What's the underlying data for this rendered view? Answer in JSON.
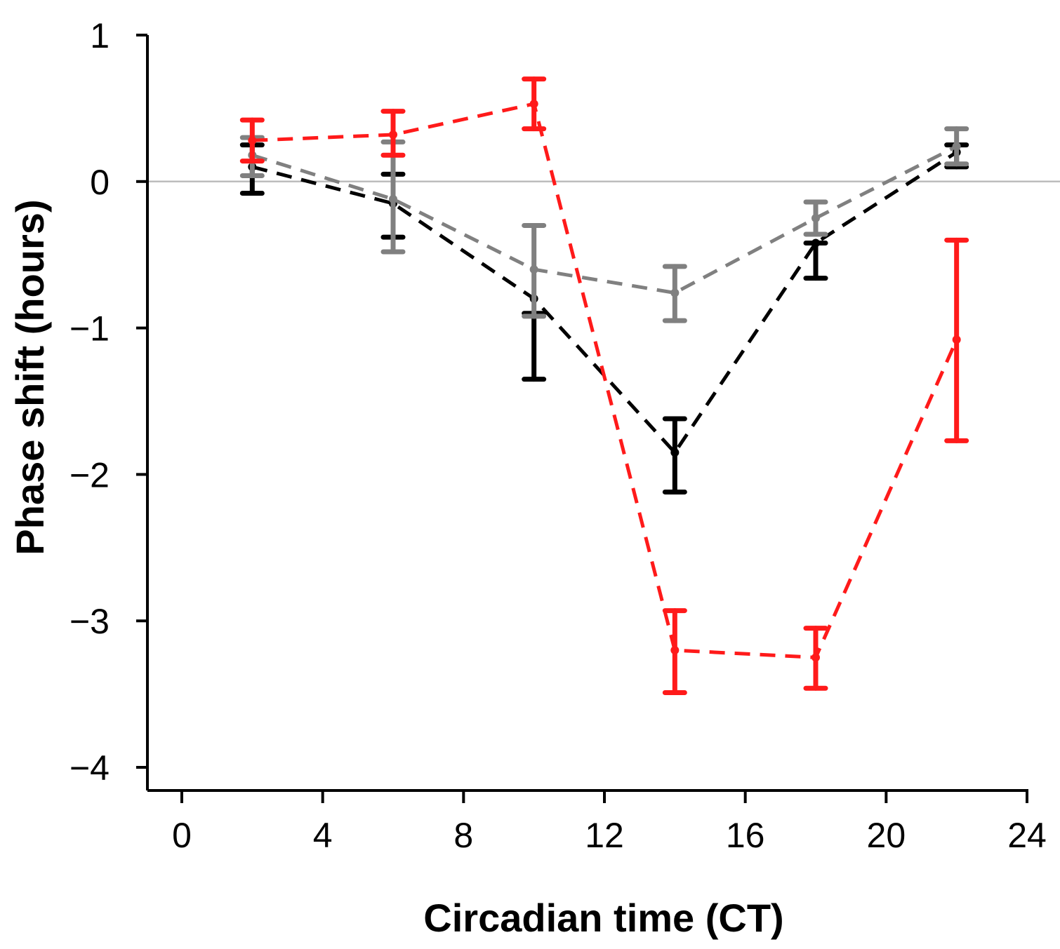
{
  "chart_data": {
    "type": "line",
    "title": "",
    "xlabel": "Circadian time (CT)",
    "ylabel": "Phase shift (hours)",
    "xlim": [
      0,
      24
    ],
    "ylim": [
      -4,
      1
    ],
    "xticks": [
      0,
      4,
      8,
      12,
      16,
      20,
      24
    ],
    "yticks": [
      1,
      0,
      -1,
      -2,
      -3,
      -4
    ],
    "ytick_labels": [
      "1",
      "0",
      "−1",
      "−2",
      "−3",
      "−4"
    ],
    "reference_line": 0,
    "series": [
      {
        "name": "black",
        "color": "#000000",
        "x": [
          2,
          6,
          10,
          14,
          18,
          22
        ],
        "y": [
          0.1,
          -0.15,
          -0.8,
          -1.85,
          -0.42,
          0.2
        ],
        "err_low": [
          -0.08,
          -0.38,
          -1.35,
          -2.12,
          -0.66,
          0.1
        ],
        "err_high": [
          0.25,
          0.05,
          -0.9,
          -1.62,
          -0.42,
          0.25
        ]
      },
      {
        "name": "gray",
        "color": "#808080",
        "x": [
          2,
          6,
          10,
          14,
          18,
          22
        ],
        "y": [
          0.18,
          -0.12,
          -0.6,
          -0.76,
          -0.25,
          0.24
        ],
        "err_low": [
          0.04,
          -0.48,
          -0.92,
          -0.95,
          -0.36,
          0.12
        ],
        "err_high": [
          0.3,
          0.27,
          -0.3,
          -0.58,
          -0.14,
          0.36
        ]
      },
      {
        "name": "red",
        "color": "#ff1a1a",
        "x": [
          2,
          6,
          10,
          14,
          18,
          22
        ],
        "y": [
          0.28,
          0.32,
          0.53,
          -3.2,
          -3.25,
          -1.08
        ],
        "err_low": [
          0.14,
          0.18,
          0.36,
          -3.49,
          -3.46,
          -1.77
        ],
        "err_high": [
          0.42,
          0.48,
          0.7,
          -2.93,
          -3.05,
          -0.4
        ]
      }
    ]
  }
}
